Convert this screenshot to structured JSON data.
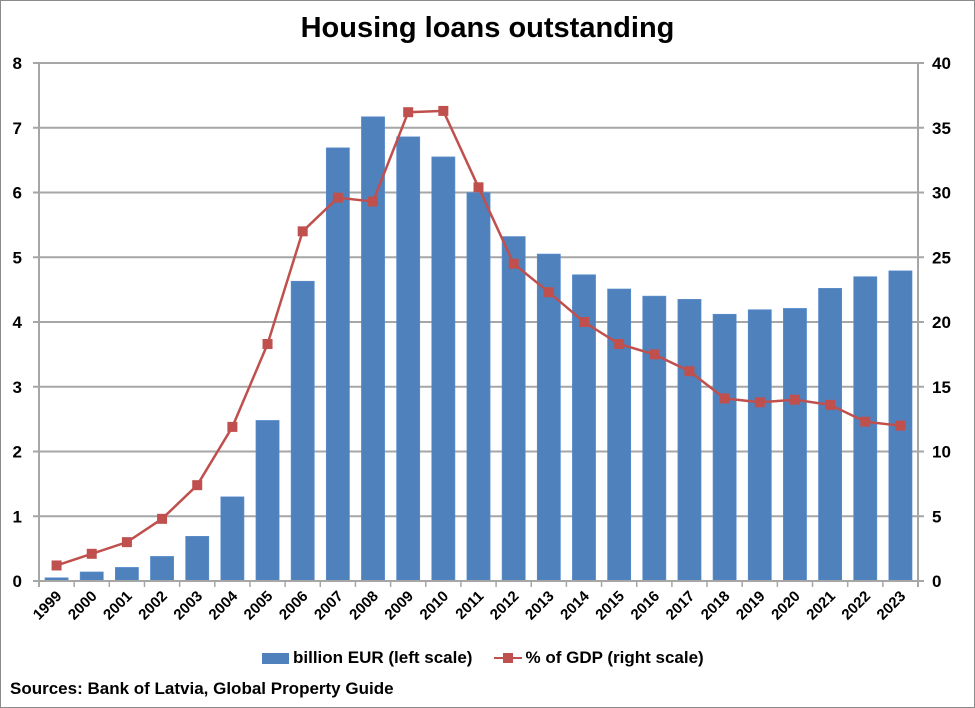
{
  "title": "Housing loans outstanding",
  "source": "Sources: Bank of Latvia, Global Property Guide",
  "legend": {
    "bar_label": "billion EUR (left scale)",
    "line_label": "% of GDP (right scale)"
  },
  "colors": {
    "bar": "#4f81bd",
    "line": "#c0504d",
    "grid": "#a6a6a6"
  },
  "axes": {
    "left_ticks": [
      "0",
      "1",
      "2",
      "3",
      "4",
      "5",
      "6",
      "7",
      "8"
    ],
    "right_ticks": [
      "0",
      "5",
      "10",
      "15",
      "20",
      "25",
      "30",
      "35",
      "40"
    ]
  },
  "chart_data": {
    "type": "bar",
    "title": "Housing loans outstanding",
    "xlabel": "",
    "ylabel": "billion EUR",
    "y2label": "% of GDP",
    "ylim": [
      0,
      8
    ],
    "y2lim": [
      0,
      40
    ],
    "grid": true,
    "legend_position": "bottom",
    "categories": [
      "1999",
      "2000",
      "2001",
      "2002",
      "2003",
      "2004",
      "2005",
      "2006",
      "2007",
      "2008",
      "2009",
      "2010",
      "2011",
      "2012",
      "2013",
      "2014",
      "2015",
      "2016",
      "2017",
      "2018",
      "2019",
      "2020",
      "2021",
      "2022",
      "2023"
    ],
    "series": [
      {
        "name": "billion EUR (left scale)",
        "type": "bar",
        "axis": "left",
        "values": [
          0.05,
          0.14,
          0.21,
          0.38,
          0.69,
          1.3,
          2.48,
          4.63,
          6.69,
          7.17,
          6.86,
          6.55,
          6.0,
          5.32,
          5.05,
          4.73,
          4.51,
          4.4,
          4.35,
          4.12,
          4.19,
          4.21,
          4.52,
          4.7,
          4.79
        ]
      },
      {
        "name": "% of GDP (right scale)",
        "type": "line",
        "axis": "right",
        "values": [
          1.2,
          2.1,
          3.0,
          4.8,
          7.4,
          11.9,
          18.3,
          27.0,
          29.6,
          29.3,
          36.2,
          36.3,
          30.4,
          24.5,
          22.3,
          20.0,
          18.3,
          17.5,
          16.2,
          14.1,
          13.8,
          14.0,
          13.6,
          12.3,
          12.0
        ]
      }
    ]
  }
}
